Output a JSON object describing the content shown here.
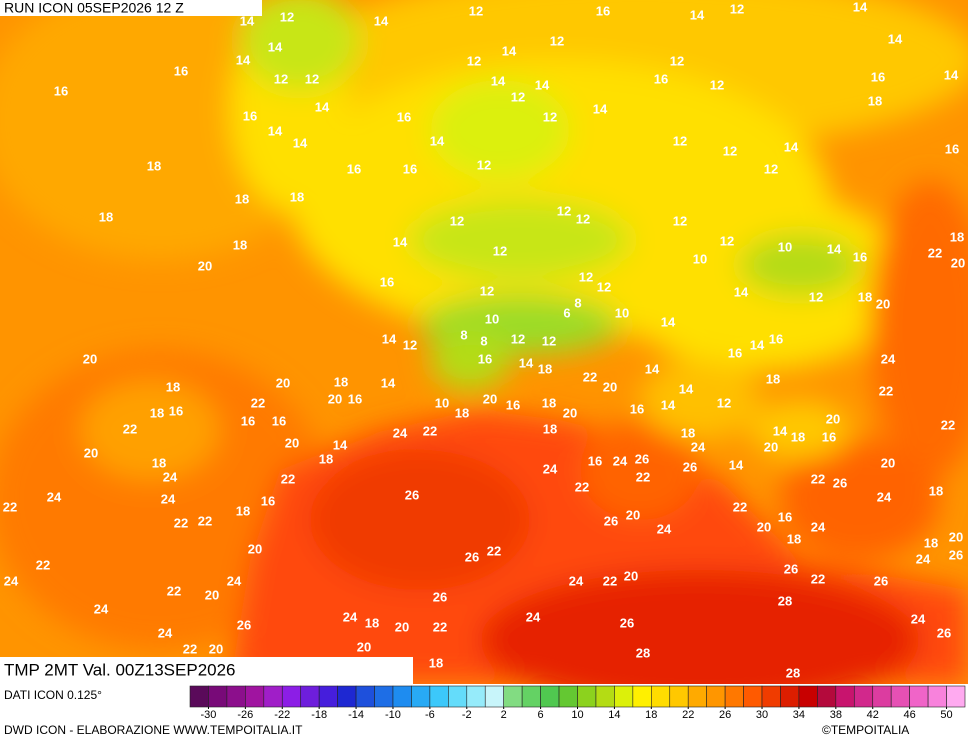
{
  "header": {
    "title": "RUN ICON 05SEP2026 12 Z"
  },
  "map": {
    "labels": [
      14,
      12,
      14,
      12,
      16,
      14,
      12,
      14,
      14,
      14,
      12,
      12,
      16,
      16,
      14,
      16,
      12,
      14,
      12,
      14,
      12,
      14,
      14,
      12,
      16,
      12,
      12,
      14,
      16,
      14,
      18,
      16,
      14,
      14,
      14,
      12,
      12,
      14,
      16,
      18,
      16,
      16,
      12,
      12,
      18,
      18,
      18,
      12,
      12,
      12,
      12,
      14,
      12,
      12,
      10,
      14,
      18,
      16,
      22,
      18,
      20,
      20,
      10,
      16,
      12,
      12,
      12,
      14,
      12,
      18,
      20,
      8,
      6,
      10,
      10,
      14,
      14,
      12,
      8,
      8,
      12,
      12,
      16,
      14,
      16,
      20,
      16,
      14,
      18,
      24,
      14,
      22,
      18,
      18,
      20,
      18,
      14,
      20,
      14,
      22,
      20,
      16,
      22,
      10,
      18,
      20,
      16,
      18,
      20,
      16,
      14,
      12,
      18,
      16,
      16,
      16,
      20,
      22,
      22,
      24,
      22,
      18,
      18,
      14,
      18,
      16,
      20,
      14,
      24,
      20,
      18,
      24,
      16,
      24,
      26,
      26,
      20,
      18,
      20,
      14,
      22,
      22,
      24,
      22,
      26,
      22,
      26,
      24,
      24,
      16,
      24,
      18,
      22,
      18,
      22,
      22,
      22,
      26,
      20,
      24,
      20,
      16,
      24,
      20,
      18,
      20,
      22,
      26,
      18,
      26,
      24,
      22,
      24,
      24,
      22,
      20,
      24,
      22,
      20,
      26,
      22,
      26,
      26,
      24,
      28,
      24,
      18,
      20,
      22,
      24,
      26,
      24,
      24,
      26,
      26,
      22,
      20,
      20,
      28,
      18,
      28
    ]
  },
  "footer": {
    "validity": "TMP 2MT Val. 00Z13SEP2026",
    "data_source": "DATI ICON 0.125°",
    "credit": "DWD ICON - ELABORAZIONE WWW.TEMPOITALIA.IT",
    "copyright": "©TEMPOITALIA"
  },
  "colorbar": {
    "range": [
      -32,
      52
    ],
    "ticks": [
      -30,
      -26,
      -22,
      -18,
      -14,
      -10,
      -6,
      -2,
      2,
      6,
      10,
      14,
      18,
      22,
      26,
      30,
      34,
      38,
      42,
      46,
      50
    ],
    "colors": [
      "#5a0a5a",
      "#780a78",
      "#8c0f8c",
      "#a014a0",
      "#a01ec8",
      "#8c1ee6",
      "#6e1edc",
      "#461edc",
      "#1e28d2",
      "#1e50dc",
      "#1e6ee6",
      "#1e8cf0",
      "#28aaf5",
      "#3cc8fa",
      "#64dcfa",
      "#96ebfa",
      "#c8f5fa",
      "#82dc82",
      "#64d264",
      "#50c850",
      "#64c832",
      "#8cd21e",
      "#b4dc14",
      "#dcf00a",
      "#fff000",
      "#ffdc00",
      "#ffc800",
      "#ffaa00",
      "#ff9600",
      "#ff7800",
      "#ff5a00",
      "#f03c00",
      "#dc1e00",
      "#c80000",
      "#b40a3c",
      "#c8146e",
      "#d2288c",
      "#dc3ca0",
      "#e650b4",
      "#f064c8",
      "#f882dc",
      "#ffaaf0"
    ]
  }
}
